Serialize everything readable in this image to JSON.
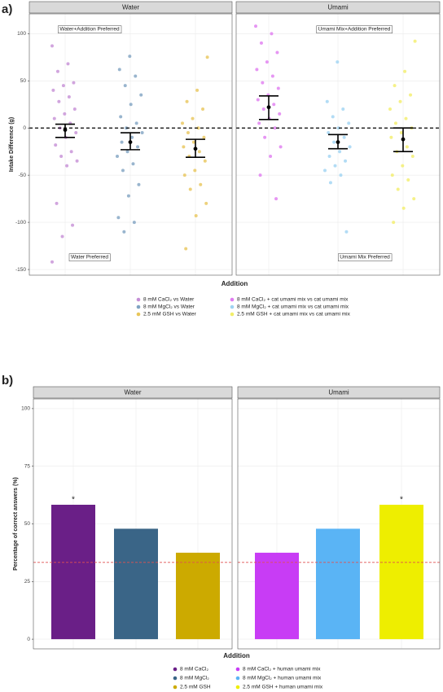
{
  "chart_data": [
    {
      "type": "strip",
      "panel_label": "a)",
      "xlabel": "Addition",
      "ylabel": "Intake Difference (g)",
      "ylim": [
        -156,
        121
      ],
      "yticks": [
        -150,
        -100,
        -50,
        0,
        50,
        100
      ],
      "grid": true,
      "refline": 0,
      "refline_color": "#000000",
      "annotations": [
        "Water+Addition Preferred",
        "Water Preferred",
        "Umami Mix+Addition Preferred",
        "Umami Mix Preferred"
      ],
      "panels": [
        {
          "title": "Water",
          "series": [
            {
              "name": "8 mM CaCl₂ vs Water",
              "color": "#c58fd6",
              "mean": -2,
              "ci": [
                -10,
                4
              ],
              "values": [
                87,
                68,
                60,
                48,
                45,
                40,
                33,
                28,
                20,
                15,
                10,
                5,
                0,
                -5,
                -10,
                -18,
                -25,
                -30,
                -35,
                -40,
                -80,
                -103,
                -115,
                -142
              ]
            },
            {
              "name": "8 mM MgCl₂ vs Water",
              "color": "#7fa3c2",
              "mean": -15,
              "ci": [
                -23,
                -5
              ],
              "values": [
                76,
                62,
                55,
                45,
                35,
                25,
                12,
                5,
                0,
                -5,
                -10,
                -15,
                -20,
                -25,
                -30,
                -38,
                -45,
                -60,
                -72,
                -95,
                -100,
                -110
              ]
            },
            {
              "name": "2.5 mM GSH vs Water",
              "color": "#e8c65a",
              "mean": -22,
              "ci": [
                -31,
                -12
              ],
              "values": [
                75,
                40,
                28,
                20,
                10,
                5,
                0,
                -5,
                -10,
                -15,
                -20,
                -25,
                -30,
                -35,
                -45,
                -50,
                -60,
                -65,
                -80,
                -93,
                -128
              ]
            }
          ]
        },
        {
          "title": "Umami",
          "series": [
            {
              "name": "8 mM CaCl₂ + cat umami mix vs cat umami mix",
              "color": "#e07cf0",
              "mean": 22,
              "ci": [
                9,
                34
              ],
              "values": [
                108,
                100,
                90,
                80,
                70,
                62,
                55,
                48,
                42,
                35,
                30,
                25,
                20,
                15,
                10,
                5,
                0,
                -10,
                -20,
                -30,
                -50,
                -75
              ]
            },
            {
              "name": "8 mM MgCl₂ + cat umami mix vs cat umami mix",
              "color": "#9fd3f2",
              "mean": -15,
              "ci": [
                -22,
                -7
              ],
              "values": [
                70,
                28,
                20,
                12,
                5,
                0,
                -5,
                -10,
                -15,
                -20,
                -25,
                -30,
                -35,
                -40,
                -45,
                -50,
                -58,
                -110
              ]
            },
            {
              "name": "2.5 mM GSH + cat umami mix vs cat umami mix",
              "color": "#f2ee6a",
              "mean": -12,
              "ci": [
                -25,
                0
              ],
              "values": [
                92,
                60,
                45,
                35,
                28,
                20,
                10,
                5,
                0,
                -5,
                -10,
                -20,
                -25,
                -30,
                -40,
                -50,
                -55,
                -65,
                -75,
                -85,
                -100
              ]
            }
          ]
        }
      ]
    },
    {
      "type": "bar",
      "panel_label": "b)",
      "xlabel": "Addition",
      "ylabel": "Percentage of correct answers (%)",
      "ylim": [
        -4.2,
        104.2
      ],
      "yticks": [
        0,
        25,
        50,
        75,
        100
      ],
      "grid": true,
      "refline": 33.3,
      "refline_color": "#e05050",
      "panels": [
        {
          "title": "Water",
          "series": [
            {
              "name": "8 mM CaCl₂",
              "color": "#6a1f87",
              "values": [
                58.3
              ],
              "significance": "*"
            },
            {
              "name": "8 mM MgCl₂",
              "color": "#3a6587",
              "values": [
                47.9
              ]
            },
            {
              "name": "2.5 mM GSH",
              "color": "#ccaa00",
              "values": [
                37.5
              ]
            }
          ]
        },
        {
          "title": "Umami",
          "series": [
            {
              "name": "8 mM CaCl₂ + human umami mix",
              "color": "#c83cf5",
              "values": [
                37.5
              ]
            },
            {
              "name": "8 mM MgCl₂ + human umami mix",
              "color": "#5ab4f5",
              "values": [
                47.9
              ]
            },
            {
              "name": "2.5 mM GSH + human umami mix",
              "color": "#eeee00",
              "values": [
                58.3
              ],
              "significance": "*"
            }
          ]
        }
      ]
    }
  ]
}
